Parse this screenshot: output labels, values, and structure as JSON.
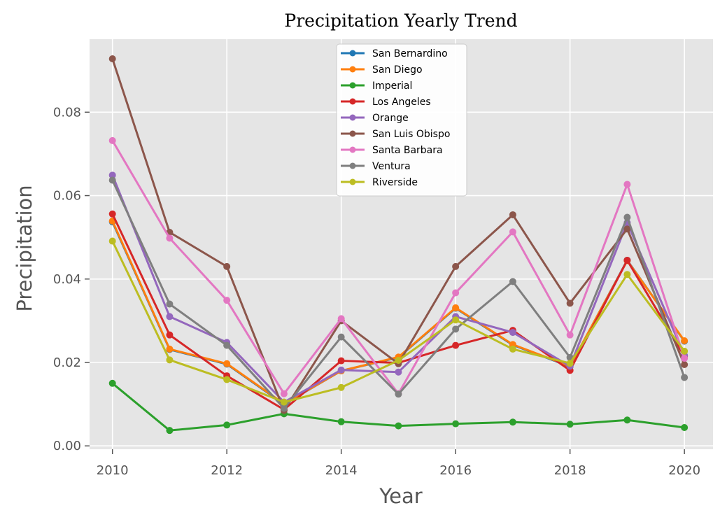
{
  "chart_data": {
    "type": "line",
    "title": "Precipitation Yearly Trend",
    "xlabel": "Year",
    "ylabel": "Precipitation",
    "x": [
      2010,
      2011,
      2012,
      2013,
      2014,
      2015,
      2016,
      2017,
      2018,
      2019,
      2020
    ],
    "xticks": [
      2010,
      2012,
      2014,
      2016,
      2018,
      2020
    ],
    "xtick_labels": [
      "2010",
      "2012",
      "2014",
      "2016",
      "2018",
      "2020"
    ],
    "xlim": [
      2009.6,
      2020.5
    ],
    "ylim": [
      -0.0008,
      0.0975
    ],
    "yticks": [
      0.0,
      0.02,
      0.04,
      0.06,
      0.08
    ],
    "ytick_labels": [
      "0.00",
      "0.02",
      "0.04",
      "0.06",
      "0.08"
    ],
    "grid": true,
    "legend_position": "top-center",
    "background": "#e5e5e5",
    "series": [
      {
        "name": "San Bernardino",
        "color": "#1f77b4",
        "values": [
          0.0537,
          0.0231,
          0.0196,
          0.01,
          0.018,
          0.0212,
          0.033,
          0.0242,
          0.019,
          0.0445,
          0.0251
        ]
      },
      {
        "name": "San Diego",
        "color": "#ff7f0e",
        "values": [
          0.0539,
          0.0232,
          0.0197,
          0.0101,
          0.018,
          0.0213,
          0.0331,
          0.0243,
          0.0191,
          0.0444,
          0.0252
        ]
      },
      {
        "name": "Imperial",
        "color": "#2ca02c",
        "values": [
          0.015,
          0.0037,
          0.005,
          0.0077,
          0.0058,
          0.0048,
          0.0053,
          0.0057,
          0.0052,
          0.0062,
          0.0044
        ]
      },
      {
        "name": "Los Angeles",
        "color": "#d62728",
        "values": [
          0.0556,
          0.0266,
          0.0168,
          0.0087,
          0.0204,
          0.0199,
          0.0241,
          0.0277,
          0.0181,
          0.0445,
          0.0215
        ]
      },
      {
        "name": "Orange",
        "color": "#9467bd",
        "values": [
          0.0649,
          0.031,
          0.0248,
          0.0105,
          0.0182,
          0.0177,
          0.031,
          0.0272,
          0.0191,
          0.0535,
          0.0217
        ]
      },
      {
        "name": "San Luis Obispo",
        "color": "#8c564b",
        "values": [
          0.0928,
          0.0512,
          0.043,
          0.0085,
          0.03,
          0.0197,
          0.043,
          0.0554,
          0.0342,
          0.052,
          0.0195
        ]
      },
      {
        "name": "Santa Barbara",
        "color": "#e377c2",
        "values": [
          0.0732,
          0.0498,
          0.0349,
          0.0125,
          0.0305,
          0.0125,
          0.0367,
          0.0513,
          0.0266,
          0.0627,
          0.021
        ]
      },
      {
        "name": "Ventura",
        "color": "#7f7f7f",
        "values": [
          0.0637,
          0.034,
          0.0241,
          0.009,
          0.0261,
          0.0124,
          0.028,
          0.0394,
          0.0212,
          0.0548,
          0.0164
        ]
      },
      {
        "name": "Riverside",
        "color": "#bcbd22",
        "values": [
          0.0491,
          0.0206,
          0.0159,
          0.0105,
          0.014,
          0.0205,
          0.0302,
          0.0232,
          0.0198,
          0.0411,
          0.0227
        ]
      }
    ]
  }
}
